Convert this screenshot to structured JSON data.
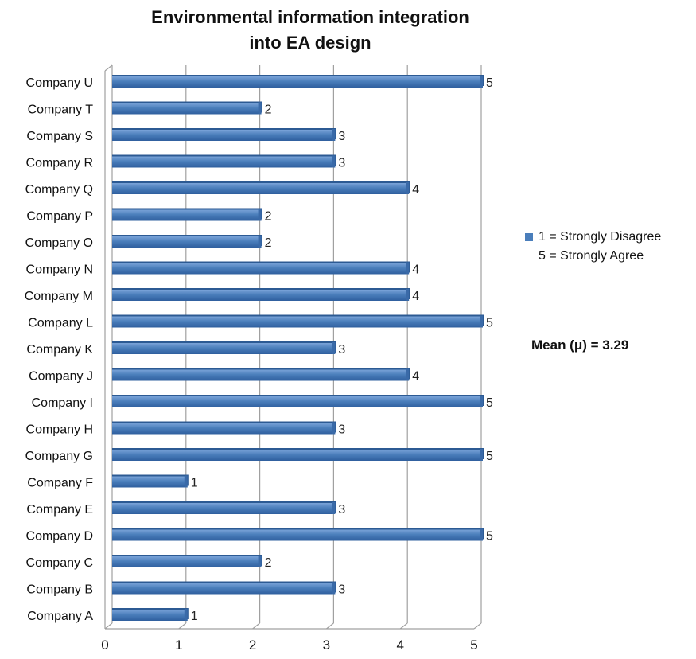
{
  "chart_data": {
    "type": "bar",
    "orientation": "horizontal",
    "title_lines": [
      "Environmental information integration",
      "into EA design"
    ],
    "categories": [
      "Company A",
      "Company B",
      "Company C",
      "Company D",
      "Company E",
      "Company F",
      "Company G",
      "Company H",
      "Company I",
      "Company J",
      "Company K",
      "Company L",
      "Company M",
      "Company N",
      "Company O",
      "Company P",
      "Company Q",
      "Company R",
      "Company S",
      "Company T",
      "Company U"
    ],
    "values": [
      1,
      3,
      2,
      5,
      3,
      1,
      5,
      3,
      5,
      4,
      3,
      5,
      4,
      4,
      2,
      2,
      4,
      3,
      3,
      2,
      5
    ],
    "xlim": [
      0,
      5
    ],
    "xticks": [
      "0",
      "1",
      "2",
      "3",
      "4",
      "5"
    ],
    "grid": true,
    "legend_position": "right",
    "bar_color": "#4a7ebb"
  },
  "legend": {
    "line1": "1 = Strongly Disagree",
    "line2": "5 = Strongly Agree"
  },
  "annotation": {
    "mean_text": "Mean (μ) = 3.29"
  }
}
